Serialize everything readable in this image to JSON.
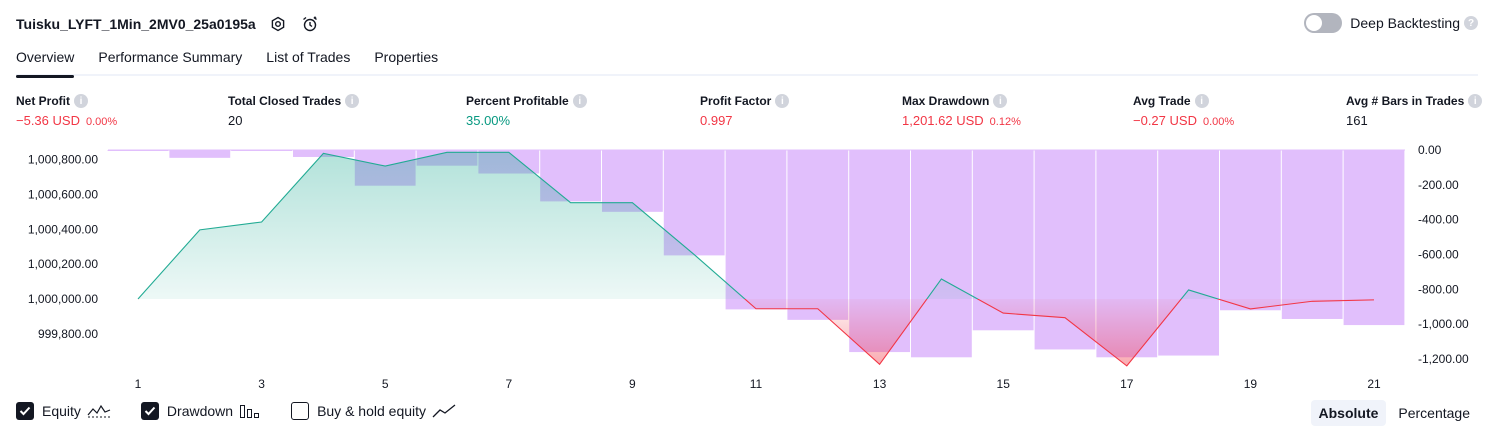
{
  "header": {
    "title": "Tuisku_LYFT_1Min_2MV0_25a0195a",
    "deep_backtesting_label": "Deep Backtesting",
    "help_glyph": "?"
  },
  "tabs": [
    {
      "label": "Overview",
      "active": true
    },
    {
      "label": "Performance Summary",
      "active": false
    },
    {
      "label": "List of Trades",
      "active": false
    },
    {
      "label": "Properties",
      "active": false
    }
  ],
  "metrics": {
    "net_profit": {
      "label": "Net Profit",
      "value": "−5.36 USD",
      "pct": "0.00%"
    },
    "total_closed_trades": {
      "label": "Total Closed Trades",
      "value": "20"
    },
    "percent_profitable": {
      "label": "Percent Profitable",
      "value": "35.00%"
    },
    "profit_factor": {
      "label": "Profit Factor",
      "value": "0.997"
    },
    "max_drawdown": {
      "label": "Max Drawdown",
      "value": "1,201.62 USD",
      "pct": "0.12%"
    },
    "avg_trade": {
      "label": "Avg Trade",
      "value": "−0.27 USD",
      "pct": "0.00%"
    },
    "avg_bars": {
      "label": "Avg # Bars in Trades",
      "value": "161"
    }
  },
  "legend": {
    "equity_label": "Equity",
    "drawdown_label": "Drawdown",
    "buy_hold_label": "Buy & hold equity",
    "equity_checked": true,
    "drawdown_checked": true,
    "buy_hold_checked": false
  },
  "mode": {
    "absolute_label": "Absolute",
    "percentage_label": "Percentage",
    "active": "Absolute"
  },
  "colors": {
    "profit": "#089981",
    "loss": "#f23645",
    "drawdown": "#e1bffc",
    "equity_line_up": "#22ab94",
    "equity_line_down": "#f23645"
  },
  "chart_data": {
    "type": "line",
    "x": [
      1,
      2,
      3,
      4,
      5,
      6,
      7,
      8,
      9,
      10,
      11,
      12,
      13,
      14,
      15,
      16,
      17,
      18,
      19,
      20,
      21
    ],
    "x_ticks": [
      "1",
      "3",
      "5",
      "7",
      "9",
      "11",
      "13",
      "15",
      "17",
      "19",
      "21"
    ],
    "equity_baseline": 1000000,
    "equity": [
      1000000,
      1000397,
      1000442,
      1000836,
      1000763,
      1000842,
      1000842,
      1000553,
      1000553,
      1000255,
      999944,
      999944,
      999625,
      1000115,
      999919,
      999893,
      999616,
      1000052,
      999943,
      999987,
      999995
    ],
    "drawdown": [
      -5,
      -45,
      -5,
      -40,
      -205,
      -90,
      -135,
      -295,
      -355,
      -605,
      -915,
      -975,
      -1160,
      -1190,
      -1035,
      -1145,
      -1190,
      -1180,
      -920,
      -970,
      -1005
    ],
    "left_axis": {
      "ticks": [
        "1,000,800.00",
        "1,000,600.00",
        "1,000,400.00",
        "1,000,200.00",
        "1,000,000.00",
        "999,800.00"
      ],
      "values": [
        1000800,
        1000600,
        1000400,
        1000200,
        1000000,
        999800
      ]
    },
    "right_axis": {
      "ticks": [
        "0.00",
        "-200.00",
        "-400.00",
        "-600.00",
        "-800.00",
        "-1,000.00",
        "-1,200.00"
      ],
      "values": [
        0,
        -200,
        -400,
        -600,
        -800,
        -1000,
        -1200
      ]
    }
  }
}
